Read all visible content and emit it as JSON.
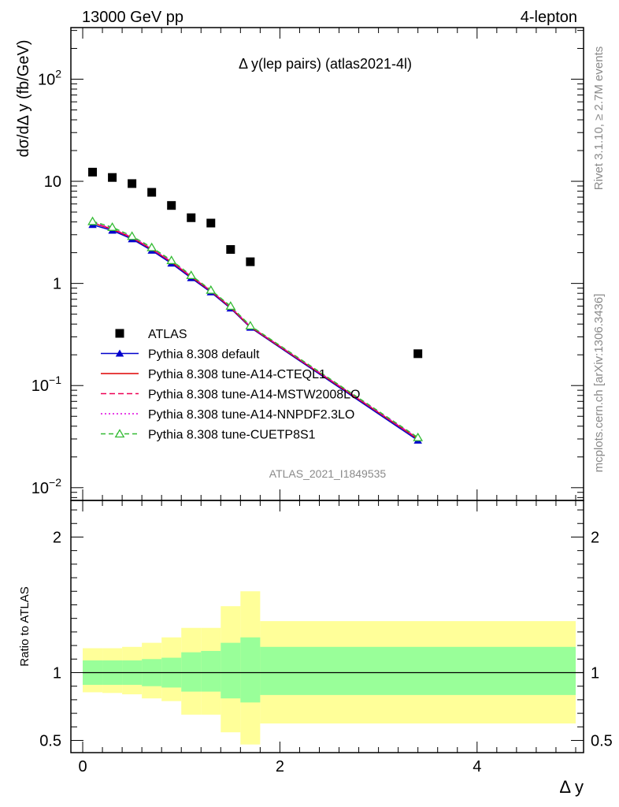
{
  "header": {
    "left": "13000 GeV pp",
    "right": "4-lepton"
  },
  "side_labels": {
    "rivet": "Rivet 3.1.10, ≥ 2.7M events",
    "mcplots": "mcplots.cern.ch [arXiv:1306.3436]"
  },
  "chart_data": [
    {
      "type": "scatter",
      "title": "Δ y(lep pairs) (atlas2021-4l)",
      "watermark": "ATLAS_2021_I1849535",
      "ylabel": "dσ/dΔ y (fb/GeV)",
      "xlim": [
        -0.12,
        5.08
      ],
      "ylim": [
        0.0075,
        320
      ],
      "yscale": "log",
      "x_ticks": [
        "0",
        "2",
        "4"
      ],
      "y_ticks": [
        {
          "base": "10",
          "exp": "−2",
          "value": 0.01
        },
        {
          "base": "10",
          "exp": "−1",
          "value": 0.1
        },
        {
          "base": "1",
          "exp": "",
          "value": 1
        },
        {
          "base": "10",
          "exp": "",
          "value": 10
        },
        {
          "base": "10",
          "exp": "2",
          "value": 100
        }
      ],
      "legend_position": "lower-left",
      "series": [
        {
          "name": "ATLAS",
          "style": "data",
          "color": "#000000",
          "x": [
            0.1,
            0.3,
            0.5,
            0.7,
            0.9,
            1.1,
            1.3,
            1.5,
            1.7,
            3.4
          ],
          "y": [
            12.3,
            10.9,
            9.5,
            7.8,
            5.8,
            4.4,
            3.9,
            2.15,
            1.63,
            0.205
          ]
        },
        {
          "name": "Pythia 8.308 default",
          "style": "filled-triangle",
          "color": "#0000cc",
          "x": [
            0.1,
            0.3,
            0.5,
            0.7,
            0.9,
            1.1,
            1.3,
            1.5,
            1.7,
            3.4
          ],
          "y": [
            3.75,
            3.3,
            2.72,
            2.1,
            1.57,
            1.13,
            0.82,
            0.57,
            0.37,
            0.029
          ]
        },
        {
          "name": "Pythia 8.308 tune-A14-CTEQL1",
          "style": "solid",
          "color": "#dd0000",
          "x": [
            0.1,
            0.3,
            0.5,
            0.7,
            0.9,
            1.1,
            1.3,
            1.5,
            1.7,
            3.4
          ],
          "y": [
            3.9,
            3.4,
            2.8,
            2.16,
            1.62,
            1.16,
            0.84,
            0.58,
            0.375,
            0.03
          ]
        },
        {
          "name": "Pythia 8.308 tune-A14-MSTW2008LO",
          "style": "dashed",
          "color": "#ee0055",
          "x": [
            0.1,
            0.3,
            0.5,
            0.7,
            0.9,
            1.1,
            1.3,
            1.5,
            1.7,
            3.4
          ],
          "y": [
            3.92,
            3.42,
            2.82,
            2.17,
            1.63,
            1.17,
            0.845,
            0.585,
            0.378,
            0.0302
          ]
        },
        {
          "name": "Pythia 8.308 tune-A14-NNPDF2.3LO",
          "style": "dotted",
          "color": "#dd00dd",
          "x": [
            0.1,
            0.3,
            0.5,
            0.7,
            0.9,
            1.1,
            1.3,
            1.5,
            1.7,
            3.4
          ],
          "y": [
            3.95,
            3.45,
            2.84,
            2.19,
            1.64,
            1.18,
            0.85,
            0.59,
            0.38,
            0.0305
          ]
        },
        {
          "name": "Pythia 8.308 tune-CUETP8S1",
          "style": "open-triangle",
          "color": "#33bb33",
          "x": [
            0.1,
            0.3,
            0.5,
            0.7,
            0.9,
            1.1,
            1.3,
            1.5,
            1.7,
            3.4
          ],
          "y": [
            4.05,
            3.55,
            2.9,
            2.25,
            1.68,
            1.2,
            0.86,
            0.6,
            0.385,
            0.031
          ]
        }
      ]
    },
    {
      "type": "area",
      "ylabel": "Ratio to ATLAS",
      "xlabel": "Δ y",
      "xlim": [
        -0.12,
        5.08
      ],
      "ylim": [
        0.41,
        2.27
      ],
      "x_ticks": [
        "0",
        "2",
        "4"
      ],
      "y_ticks": [
        "0.5",
        "1",
        "2"
      ],
      "reference": 1.0,
      "bin_edges": [
        0,
        0.2,
        0.4,
        0.6,
        0.8,
        1.0,
        1.2,
        1.4,
        1.6,
        1.8,
        5.0
      ],
      "stat_band": {
        "color": "#99ff99",
        "low": [
          0.91,
          0.91,
          0.91,
          0.9,
          0.89,
          0.86,
          0.86,
          0.81,
          0.78,
          0.835
        ],
        "high": [
          1.09,
          1.09,
          1.09,
          1.1,
          1.11,
          1.15,
          1.16,
          1.22,
          1.26,
          1.19
        ]
      },
      "total_band": {
        "color": "#ffff99",
        "low": [
          0.855,
          0.85,
          0.84,
          0.81,
          0.79,
          0.69,
          0.69,
          0.56,
          0.47,
          0.625
        ],
        "high": [
          1.18,
          1.18,
          1.19,
          1.22,
          1.26,
          1.33,
          1.33,
          1.49,
          1.6,
          1.38
        ]
      }
    }
  ]
}
